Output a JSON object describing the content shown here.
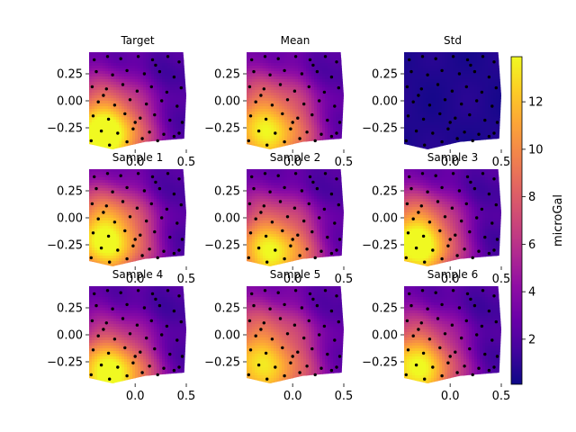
{
  "chart_data": {
    "type": "heatmap",
    "units_label": "microGal",
    "colormap": "plasma",
    "colorbar": {
      "range": [
        0.1,
        13.9
      ],
      "ticks": [
        2,
        4,
        6,
        8,
        10,
        12
      ],
      "tick_labels": [
        "2",
        "4",
        "6",
        "8",
        "10",
        "12"
      ],
      "label": "microGal",
      "placement": "right"
    },
    "x_axis": {
      "range": [
        -0.45,
        0.5
      ],
      "ticks": [
        0.0,
        0.5
      ],
      "tick_labels": [
        "0.0",
        "0.5"
      ]
    },
    "y_axis": {
      "range": [
        -0.45,
        0.45
      ],
      "ticks": [
        -0.25,
        0.0,
        0.25
      ],
      "tick_labels": [
        "−0.25",
        "0.00",
        "0.25"
      ]
    },
    "grid": false,
    "domain_boundary": [
      [
        -0.45,
        0.45
      ],
      [
        0.47,
        0.45
      ],
      [
        0.5,
        0.05
      ],
      [
        0.48,
        -0.35
      ],
      [
        0.1,
        -0.38
      ],
      [
        -0.22,
        -0.45
      ],
      [
        -0.45,
        -0.4
      ]
    ],
    "observation_points": [
      [
        -0.4,
        0.38
      ],
      [
        -0.27,
        0.41
      ],
      [
        -0.14,
        0.39
      ],
      [
        0.03,
        0.41
      ],
      [
        0.17,
        0.38
      ],
      [
        0.32,
        0.41
      ],
      [
        0.43,
        0.36
      ],
      [
        -0.38,
        0.27
      ],
      [
        -0.22,
        0.24
      ],
      [
        -0.08,
        0.28
      ],
      [
        0.09,
        0.25
      ],
      [
        0.24,
        0.27
      ],
      [
        0.38,
        0.22
      ],
      [
        -0.42,
        0.13
      ],
      [
        -0.28,
        0.11
      ],
      [
        -0.12,
        0.15
      ],
      [
        0.02,
        0.09
      ],
      [
        0.16,
        0.13
      ],
      [
        0.31,
        0.08
      ],
      [
        0.45,
        0.12
      ],
      [
        -0.36,
        -0.01
      ],
      [
        -0.2,
        -0.04
      ],
      [
        -0.05,
        0.01
      ],
      [
        0.11,
        -0.03
      ],
      [
        0.26,
        0.0
      ],
      [
        0.41,
        -0.05
      ],
      [
        -0.41,
        -0.14
      ],
      [
        -0.26,
        -0.17
      ],
      [
        -0.1,
        -0.12
      ],
      [
        0.05,
        -0.16
      ],
      [
        0.19,
        -0.13
      ],
      [
        0.34,
        -0.18
      ],
      [
        0.46,
        -0.2
      ],
      [
        -0.33,
        -0.28
      ],
      [
        -0.17,
        -0.3
      ],
      [
        -0.02,
        -0.26
      ],
      [
        0.14,
        -0.29
      ],
      [
        0.28,
        -0.31
      ],
      [
        0.43,
        -0.3
      ],
      [
        -0.43,
        -0.37
      ],
      [
        -0.25,
        -0.41
      ],
      [
        -0.08,
        -0.38
      ],
      [
        0.07,
        -0.35
      ],
      [
        0.22,
        -0.37
      ],
      [
        0.38,
        -0.33
      ],
      [
        -0.31,
        0.05
      ],
      [
        0.0,
        -0.2
      ],
      [
        0.2,
        0.33
      ]
    ],
    "panels": [
      {
        "title": "Target",
        "kind": "field",
        "peak": [
          -0.3,
          -0.32
        ],
        "amp": 13.5,
        "spread": 0.5,
        "slope_x": 1.6,
        "slope_y": -0.6
      },
      {
        "title": "Mean",
        "kind": "field",
        "peak": [
          -0.25,
          -0.3
        ],
        "amp": 11.5,
        "spread": 0.55,
        "slope_x": 1.7,
        "slope_y": -0.4
      },
      {
        "title": "Std",
        "kind": "std",
        "level": 0.6
      },
      {
        "title": "Sample 1",
        "kind": "field",
        "peak": [
          -0.28,
          -0.2
        ],
        "amp": 12.5,
        "spread": 0.5,
        "slope_x": 1.5,
        "slope_y": -0.5
      },
      {
        "title": "Sample 2",
        "kind": "field",
        "peak": [
          -0.2,
          -0.33
        ],
        "amp": 11.8,
        "spread": 0.52,
        "slope_x": 1.8,
        "slope_y": -0.3
      },
      {
        "title": "Sample 3",
        "kind": "field",
        "peak": [
          -0.33,
          -0.25
        ],
        "amp": 13.2,
        "spread": 0.48,
        "slope_x": 1.6,
        "slope_y": -0.7
      },
      {
        "title": "Sample 4",
        "kind": "field",
        "peak": [
          -0.25,
          -0.4
        ],
        "amp": 13.0,
        "spread": 0.5,
        "slope_x": 1.7,
        "slope_y": -0.5
      },
      {
        "title": "Sample 5",
        "kind": "field",
        "peak": [
          -0.3,
          -0.3
        ],
        "amp": 11.0,
        "spread": 0.6,
        "slope_x": 1.4,
        "slope_y": -0.4
      },
      {
        "title": "Sample 6",
        "kind": "field",
        "peak": [
          -0.33,
          -0.33
        ],
        "amp": 12.0,
        "spread": 0.5,
        "slope_x": 1.6,
        "slope_y": -0.6
      }
    ]
  }
}
